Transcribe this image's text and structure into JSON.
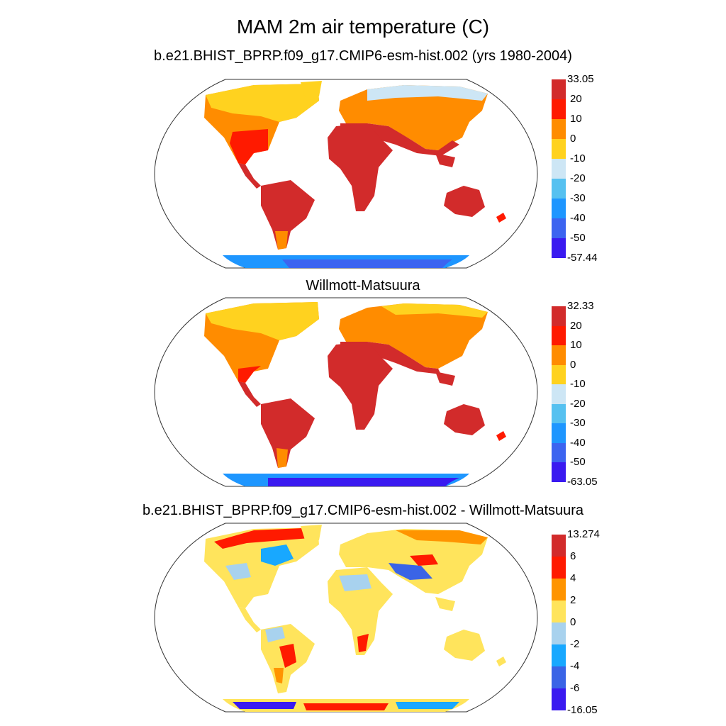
{
  "title": "MAM 2m air temperature (C)",
  "panels": [
    {
      "title": "b.e21.BHIST_BPRP.f09_g17.CMIP6-esm-hist.002 (yrs 1980-2004)",
      "colorbar": {
        "labels": [
          "33.05",
          "20",
          "10",
          "0",
          "-10",
          "-20",
          "-30",
          "-40",
          "-50",
          "-57.44"
        ],
        "colors": [
          "#d22b2b",
          "#ff1a00",
          "#ff8c00",
          "#ffd21f",
          "#cde6f5",
          "#56c1f0",
          "#1e96ff",
          "#3c64f0",
          "#3a1af0"
        ]
      }
    },
    {
      "title": "Willmott-Matsuura",
      "colorbar": {
        "labels": [
          "32.33",
          "20",
          "10",
          "0",
          "-10",
          "-20",
          "-30",
          "-40",
          "-50",
          "-63.05"
        ],
        "colors": [
          "#d22b2b",
          "#ff1a00",
          "#ff8c00",
          "#ffd21f",
          "#cde6f5",
          "#56c1f0",
          "#1e96ff",
          "#3c64f0",
          "#3a1af0"
        ]
      }
    },
    {
      "title": "b.e21.BHIST_BPRP.f09_g17.CMIP6-esm-hist.002 - Willmott-Matsuura",
      "colorbar": {
        "labels": [
          "13.274",
          "6",
          "4",
          "2",
          "0",
          "-2",
          "-4",
          "-6",
          "-16.05"
        ],
        "colors": [
          "#d22b2b",
          "#ff1a00",
          "#ff9400",
          "#ffe45c",
          "#a8d2ee",
          "#18a8ff",
          "#3a64e6",
          "#3a1af0"
        ]
      }
    }
  ]
}
